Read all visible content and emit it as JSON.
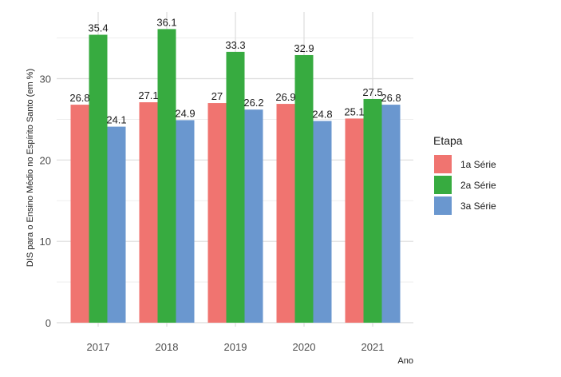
{
  "chart_data": {
    "type": "bar",
    "title": "",
    "xlabel": "Ano",
    "ylabel": "DIS para o Ensino Médio no Espírito Santo (em %)",
    "categories": [
      "2017",
      "2018",
      "2019",
      "2020",
      "2021"
    ],
    "series": [
      {
        "name": "1a Série",
        "color": "#f07470",
        "values": [
          26.8,
          27.1,
          27,
          26.9,
          25.1
        ],
        "labels": [
          "26.8",
          "27.1",
          "27",
          "26.9",
          "25.1"
        ]
      },
      {
        "name": "2a Série",
        "color": "#37ab40",
        "values": [
          35.4,
          36.1,
          33.3,
          32.9,
          27.5
        ],
        "labels": [
          "35.4",
          "36.1",
          "33.3",
          "32.9",
          "27.5"
        ]
      },
      {
        "name": "3a Série",
        "color": "#6a97cf",
        "values": [
          24.1,
          24.9,
          26.2,
          24.8,
          26.8
        ],
        "labels": [
          "24.1",
          "24.9",
          "26.2",
          "24.8",
          "26.8"
        ]
      }
    ],
    "yticks": [
      0,
      10,
      20,
      30
    ],
    "ytick_labels": [
      "0",
      "10",
      "20",
      "30"
    ],
    "ylim": [
      0,
      38.2
    ],
    "grid": true,
    "legend": {
      "title": "Etapa",
      "position": "right"
    }
  }
}
